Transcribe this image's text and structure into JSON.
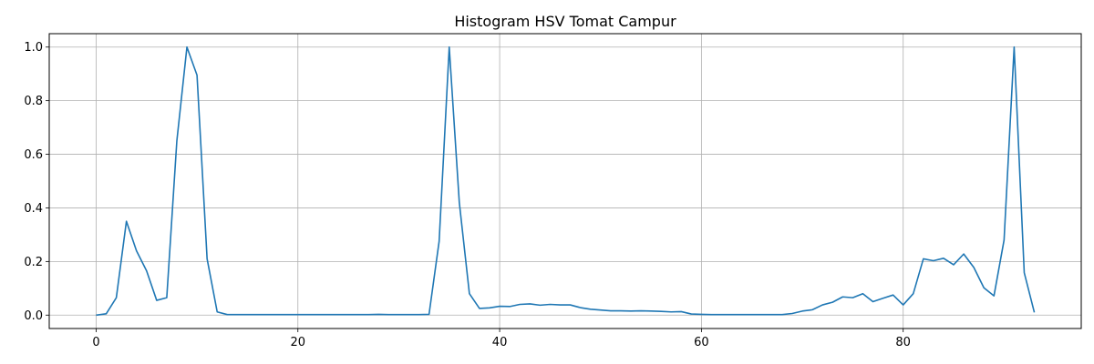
{
  "chart_data": {
    "type": "line",
    "title": "Histogram HSV Tomat Campur",
    "xlabel": "",
    "ylabel": "",
    "xlim": [
      -4.65,
      97.65
    ],
    "ylim": [
      -0.05,
      1.05
    ],
    "xticks": [
      0,
      20,
      40,
      60,
      80
    ],
    "yticks": [
      0.0,
      0.2,
      0.4,
      0.6,
      0.8,
      1.0
    ],
    "xtick_labels": [
      "0",
      "20",
      "40",
      "60",
      "80"
    ],
    "ytick_labels": [
      "0.0",
      "0.2",
      "0.4",
      "0.6",
      "0.8",
      "1.0"
    ],
    "grid": true,
    "line_color": "#1f77b4",
    "grid_color": "#b0b0b0",
    "series": [
      {
        "values": [
          0.0,
          0.005,
          0.065,
          0.35,
          0.24,
          0.165,
          0.055,
          0.065,
          0.65,
          1.0,
          0.895,
          0.21,
          0.012,
          0.002,
          0.002,
          0.002,
          0.002,
          0.002,
          0.002,
          0.002,
          0.002,
          0.002,
          0.002,
          0.002,
          0.002,
          0.002,
          0.002,
          0.002,
          0.003,
          0.002,
          0.002,
          0.002,
          0.002,
          0.003,
          0.275,
          1.0,
          0.42,
          0.08,
          0.025,
          0.027,
          0.033,
          0.032,
          0.04,
          0.042,
          0.037,
          0.04,
          0.038,
          0.038,
          0.028,
          0.022,
          0.019,
          0.016,
          0.016,
          0.015,
          0.016,
          0.015,
          0.014,
          0.012,
          0.013,
          0.004,
          0.003,
          0.002,
          0.002,
          0.002,
          0.002,
          0.002,
          0.002,
          0.002,
          0.002,
          0.006,
          0.015,
          0.02,
          0.038,
          0.048,
          0.068,
          0.065,
          0.08,
          0.05,
          0.063,
          0.075,
          0.038,
          0.08,
          0.21,
          0.203,
          0.212,
          0.188,
          0.228,
          0.178,
          0.102,
          0.072,
          0.28,
          1.0,
          0.158,
          0.01
        ]
      }
    ]
  }
}
